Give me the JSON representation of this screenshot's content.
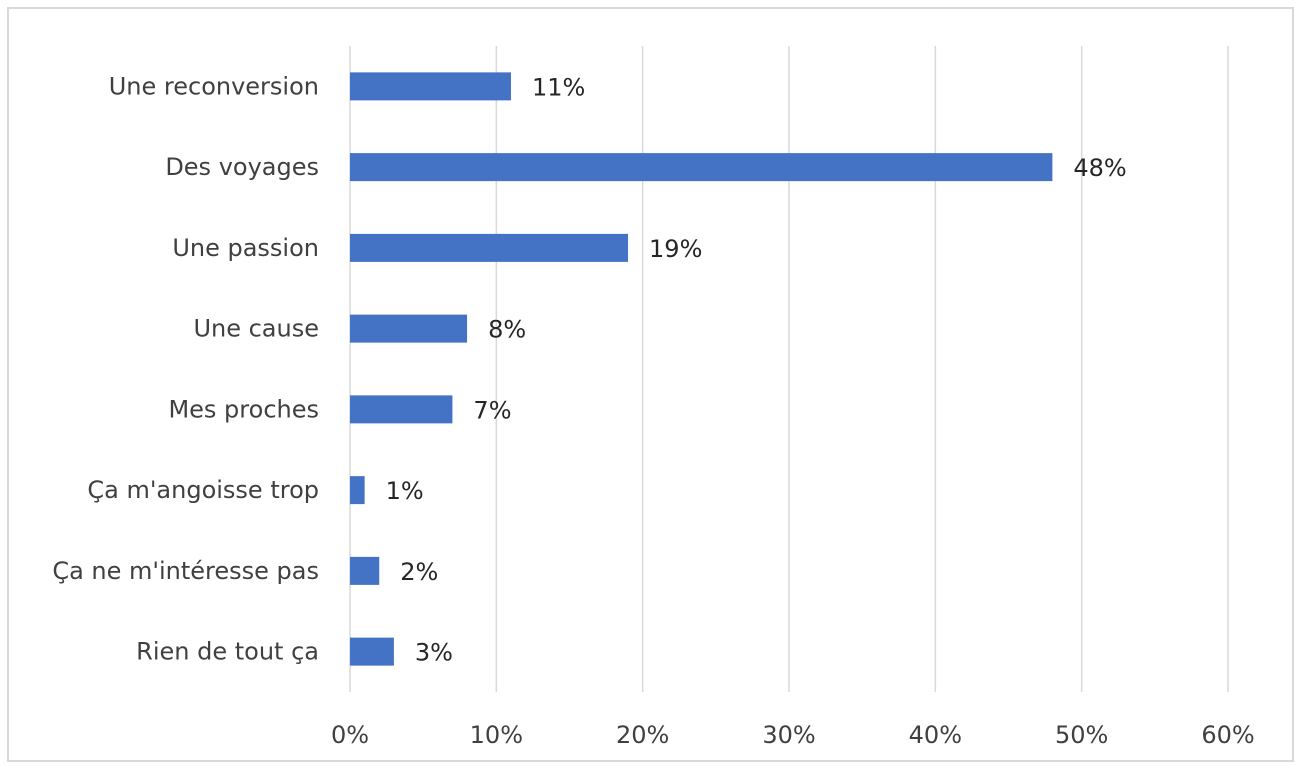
{
  "chart_data": {
    "type": "bar",
    "orientation": "horizontal",
    "title": "",
    "xlabel": "",
    "ylabel": "",
    "categories": [
      "Une reconversion",
      "Des voyages",
      "Une passion",
      "Une cause",
      "Mes proches",
      "Ça m'angoisse trop",
      "Ça ne m'intéresse pas",
      "Rien de tout ça"
    ],
    "values": [
      11,
      48,
      19,
      8,
      7,
      1,
      2,
      3
    ],
    "data_labels": [
      "11%",
      "48%",
      "19%",
      "8%",
      "7%",
      "1%",
      "2%",
      "3%"
    ],
    "xlim": [
      0,
      60
    ],
    "x_ticks": [
      0,
      10,
      20,
      30,
      40,
      50,
      60
    ],
    "x_tick_labels": [
      "0%",
      "10%",
      "20%",
      "30%",
      "40%",
      "50%",
      "60%"
    ],
    "grid": "vertical",
    "legend": "none",
    "colors": {
      "bar": "#4472C4",
      "grid": "#D9D9D9",
      "frame": "#D9D9D9",
      "text": "#404040"
    }
  }
}
